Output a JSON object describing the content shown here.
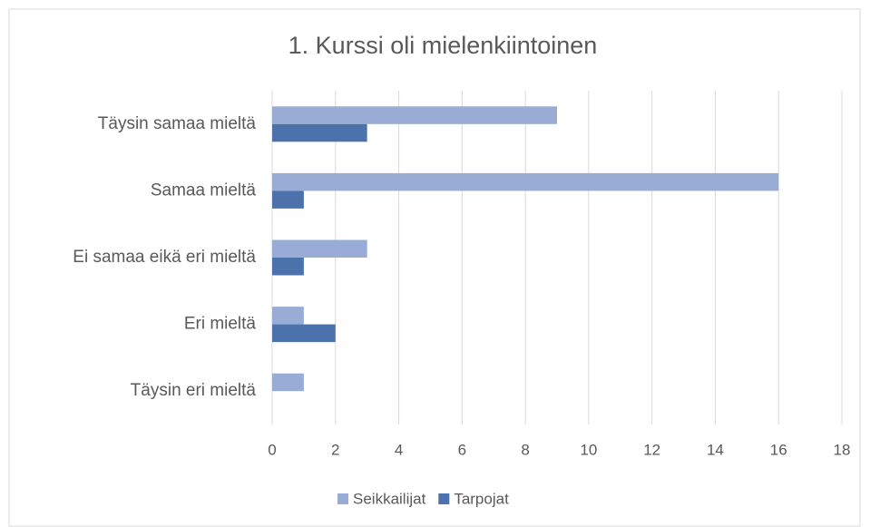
{
  "chart_data": {
    "type": "hbar",
    "title": "1. Kurssi oli mielenkiintoinen",
    "categories": [
      "Täysin samaa mieltä",
      "Samaa mieltä",
      "Ei samaa eikä eri mieltä",
      "Eri mieltä",
      "Täysin eri mieltä"
    ],
    "series": [
      {
        "name": "Seikkailijat",
        "color": "#98acd5",
        "values": [
          9,
          16,
          3,
          1,
          1
        ]
      },
      {
        "name": "Tarpojat",
        "color": "#4b72aa",
        "values": [
          3,
          1,
          1,
          2,
          0
        ]
      }
    ],
    "xlim": [
      0,
      18
    ],
    "xticks": [
      0,
      2,
      4,
      6,
      8,
      10,
      12,
      14,
      16,
      18
    ],
    "grid": true,
    "legend": "bottom"
  }
}
